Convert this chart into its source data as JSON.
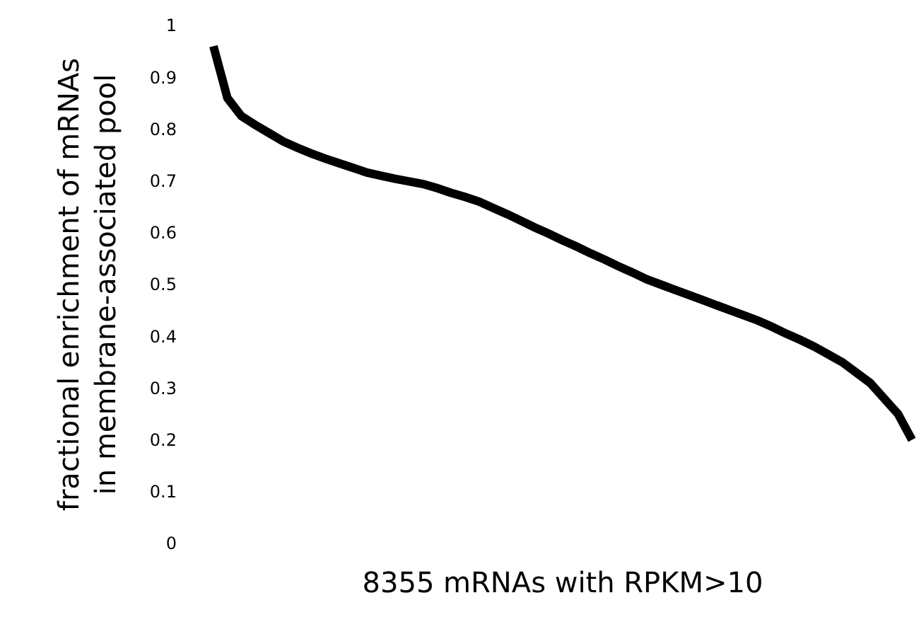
{
  "chart_data": {
    "type": "line",
    "xlabel": "8355 mRNAs with RPKM>10",
    "ylabel": "fractional enrichment of mRNAs\nin membrane-associated pool",
    "categories": [
      null,
      null,
      null,
      null,
      null,
      null,
      null,
      null,
      null,
      null,
      null,
      null,
      null,
      null,
      null,
      null,
      null,
      null,
      null,
      null,
      null,
      null,
      null,
      null,
      null,
      null,
      null,
      null,
      null,
      null,
      null,
      null,
      null,
      null,
      null,
      null,
      null,
      null,
      null,
      null,
      null,
      null,
      null,
      null,
      null,
      null,
      null,
      null,
      null,
      null,
      null
    ],
    "series": [
      {
        "color": "#000000",
        "values": [
          0.96,
          0.86,
          0.825,
          0.808,
          0.792,
          0.776,
          0.764,
          0.753,
          0.743,
          0.734,
          0.725,
          0.716,
          0.71,
          0.704,
          0.699,
          0.694,
          0.686,
          0.677,
          0.669,
          0.66,
          0.648,
          0.636,
          0.623,
          0.61,
          0.598,
          0.585,
          0.573,
          0.56,
          0.548,
          0.535,
          0.523,
          0.51,
          0.5,
          0.49,
          0.48,
          0.47,
          0.46,
          0.45,
          0.44,
          0.43,
          0.418,
          0.405,
          0.393,
          0.38,
          0.365,
          0.35,
          0.33,
          0.31,
          0.28,
          0.25,
          0.2
        ]
      }
    ],
    "ylim": [
      0,
      1
    ],
    "yticks": [
      0,
      0.1,
      0.2,
      0.3,
      0.4,
      0.5,
      0.6,
      0.7,
      0.8,
      0.9,
      1
    ],
    "grid": false,
    "legend": false,
    "tick_labels": "y",
    "marker": "none",
    "line_style": "solid"
  }
}
